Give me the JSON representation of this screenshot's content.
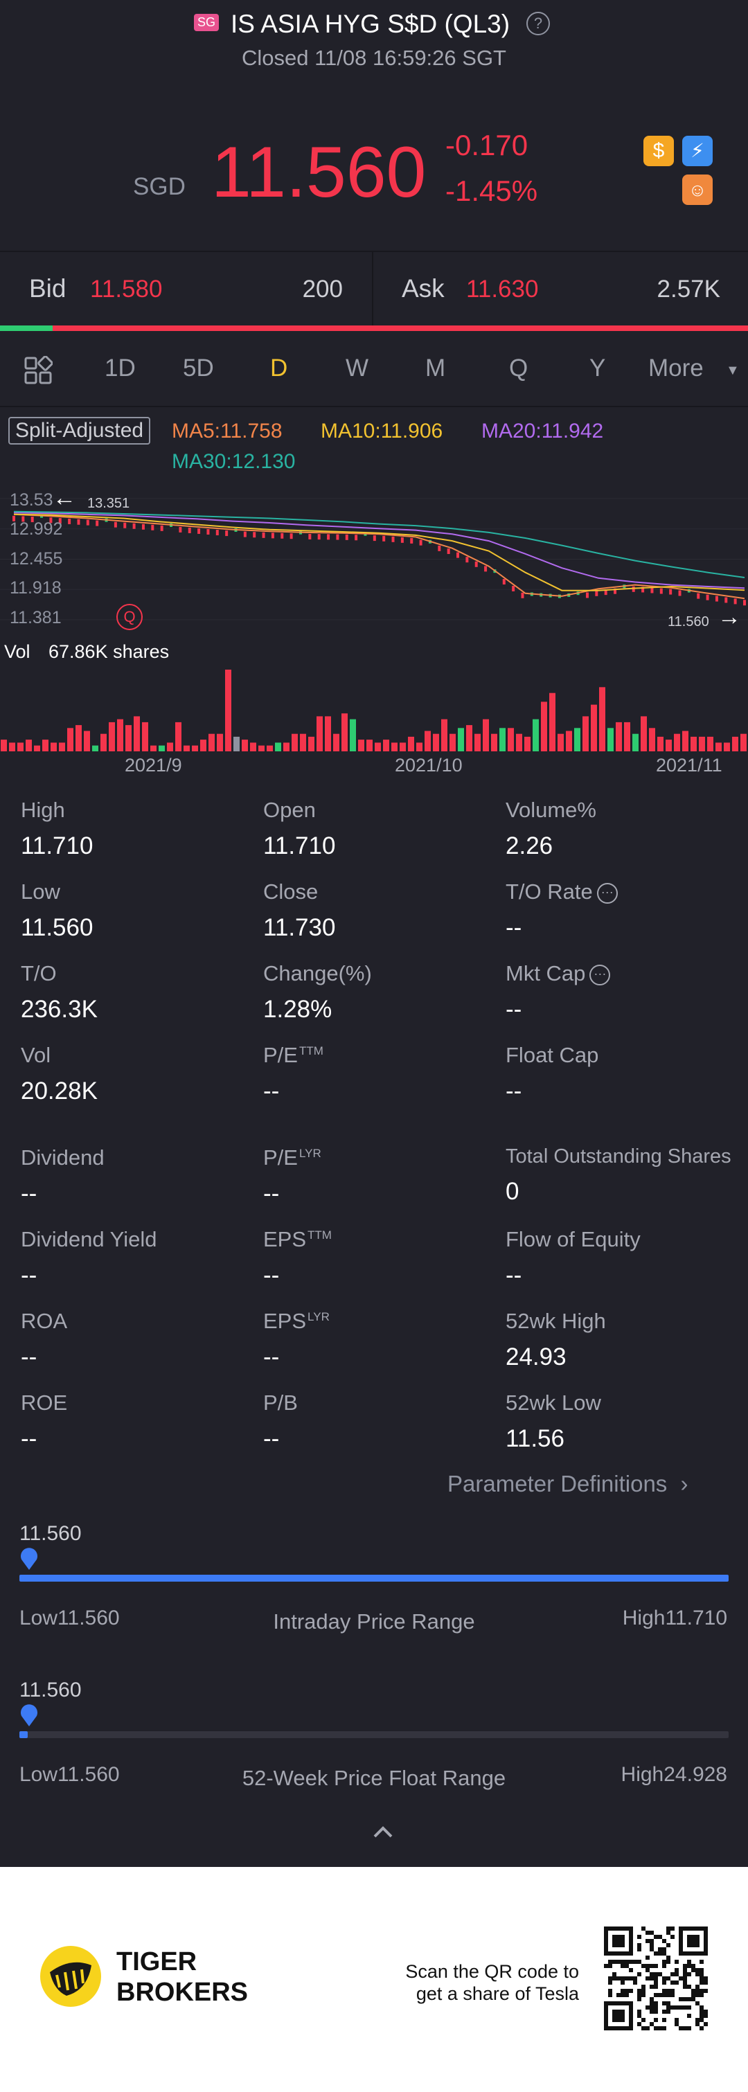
{
  "header": {
    "market_badge": "SG",
    "title": "IS ASIA HYG S$D (QL3)",
    "status": "Closed 11/08 16:59:26 SGT"
  },
  "quote": {
    "currency": "SGD",
    "price": "11.560",
    "change": "-0.170",
    "change_pct": "-1.45%"
  },
  "bidask": {
    "bid_label": "Bid",
    "bid_price": "11.580",
    "bid_size": "200",
    "ask_label": "Ask",
    "ask_price": "11.630",
    "ask_size": "2.57K",
    "bid_share": 0.07
  },
  "tabs": [
    "1D",
    "5D",
    "D",
    "W",
    "M",
    "Q",
    "Y",
    "More"
  ],
  "active_tab": "D",
  "chart": {
    "adjust_label": "Split-Adjusted",
    "ma5": "MA5:11.758",
    "ma10": "MA10:11.906",
    "ma20": "MA20:11.942",
    "ma30": "MA30:12.130",
    "y_ticks": [
      "13.53",
      "12.992",
      "12.455",
      "11.918",
      "11.381"
    ],
    "high_marker": "13.351",
    "last_marker": "11.560",
    "vol_label": "Vol",
    "vol_value": "67.86K shares",
    "x_ticks": [
      "2021/9",
      "2021/10",
      "2021/11"
    ],
    "colors": {
      "up": "#2ecc71",
      "down": "#f4354c",
      "ma5": "#f2854a",
      "ma10": "#f2c230",
      "ma20": "#b26bef",
      "ma30": "#29b3a2"
    }
  },
  "chart_data": {
    "type": "line",
    "title": "",
    "x_ticks": [
      "2021/9",
      "2021/10",
      "2021/11"
    ],
    "y_ticks": [
      "13.53",
      "12.992",
      "12.455",
      "11.918",
      "11.381"
    ],
    "ylim": [
      11.381,
      13.53
    ],
    "series": [
      {
        "name": "MA5",
        "values": [
          13.25,
          13.22,
          13.18,
          13.13,
          13.08,
          13.03,
          12.98,
          12.95,
          12.93,
          12.92,
          12.9,
          12.85,
          12.65,
          12.33,
          11.85,
          11.8,
          11.93,
          12.0,
          11.95,
          11.85,
          11.758
        ]
      },
      {
        "name": "MA10",
        "values": [
          13.25,
          13.24,
          13.21,
          13.18,
          13.12,
          13.07,
          13.02,
          12.98,
          12.96,
          12.94,
          12.92,
          12.88,
          12.78,
          12.6,
          12.22,
          11.9,
          11.9,
          11.94,
          11.97,
          11.94,
          11.906
        ]
      },
      {
        "name": "MA20",
        "values": [
          13.28,
          13.27,
          13.25,
          13.23,
          13.2,
          13.17,
          13.13,
          13.1,
          13.06,
          13.03,
          13.0,
          12.97,
          12.9,
          12.78,
          12.55,
          12.3,
          12.12,
          12.05,
          12.0,
          11.97,
          11.942
        ]
      },
      {
        "name": "MA30",
        "values": [
          13.3,
          13.29,
          13.28,
          13.26,
          13.24,
          13.22,
          13.2,
          13.18,
          13.15,
          13.12,
          13.08,
          13.05,
          13.0,
          12.93,
          12.83,
          12.7,
          12.56,
          12.43,
          12.32,
          12.22,
          12.13
        ]
      }
    ],
    "volume": [
      4,
      3,
      3,
      4,
      2,
      4,
      3,
      3,
      8,
      9,
      7,
      2,
      6,
      10,
      11,
      9,
      12,
      10,
      2,
      2,
      3,
      10,
      2,
      2,
      4,
      6,
      6,
      28,
      5,
      4,
      3,
      2,
      2,
      3,
      3,
      6,
      6,
      5,
      12,
      12,
      6,
      13,
      11,
      4,
      4,
      3,
      4,
      3,
      3,
      5,
      3,
      7,
      6,
      11,
      6,
      8,
      9,
      6,
      11,
      6,
      8,
      8,
      6,
      5,
      11,
      17,
      20,
      6,
      7,
      8,
      12,
      16,
      22,
      8,
      10,
      10,
      6,
      12,
      8,
      5,
      4,
      6,
      7,
      5,
      5,
      5,
      3,
      3,
      5,
      6
    ]
  },
  "stats": [
    {
      "label": "High",
      "value": "11.710"
    },
    {
      "label": "Open",
      "value": "11.710"
    },
    {
      "label": "Volume%",
      "value": "2.26"
    },
    {
      "label": "Low",
      "value": "11.560"
    },
    {
      "label": "Close",
      "value": "11.730"
    },
    {
      "label": "T/O Rate",
      "value": "--"
    },
    {
      "label": "T/O",
      "value": "236.3K"
    },
    {
      "label": "Change(%)",
      "value": "1.28%"
    },
    {
      "label": "Mkt Cap",
      "value": "--"
    },
    {
      "label": "Vol",
      "value": "20.28K"
    },
    {
      "label": "P/E",
      "sup": "TTM",
      "value": "--"
    },
    {
      "label": "Float Cap",
      "value": "--"
    },
    {
      "label": "Dividend",
      "value": "--"
    },
    {
      "label": "P/E",
      "sup": "LYR",
      "value": "--"
    },
    {
      "label": "Total Outstanding Shares",
      "value": "0"
    },
    {
      "label": "Dividend Yield",
      "value": "--"
    },
    {
      "label": "EPS",
      "sup": "TTM",
      "value": "--"
    },
    {
      "label": "Flow of Equity",
      "value": "--"
    },
    {
      "label": "ROA",
      "value": "--"
    },
    {
      "label": "EPS",
      "sup": "LYR",
      "value": "--"
    },
    {
      "label": "52wk High",
      "value": "24.93"
    },
    {
      "label": "ROE",
      "value": "--"
    },
    {
      "label": "P/B",
      "value": "--"
    },
    {
      "label": "52wk Low",
      "value": "11.56"
    }
  ],
  "param_link": "Parameter Definitions",
  "intraday": {
    "current": "11.560",
    "low_label": "Low",
    "low": "11.560",
    "title": "Intraday Price Range",
    "high_label": "High",
    "high": "11.710",
    "position": 0.0
  },
  "week52": {
    "current": "11.560",
    "low_label": "Low",
    "low": "11.560",
    "title": "52-Week Price Float Range",
    "high_label": "High",
    "high": "24.928",
    "position": 0.0
  },
  "footer": {
    "brand_line1": "TIGER",
    "brand_line2": "BROKERS",
    "qr_line1": "Scan the QR code to",
    "qr_line2": "get a share of Tesla"
  }
}
